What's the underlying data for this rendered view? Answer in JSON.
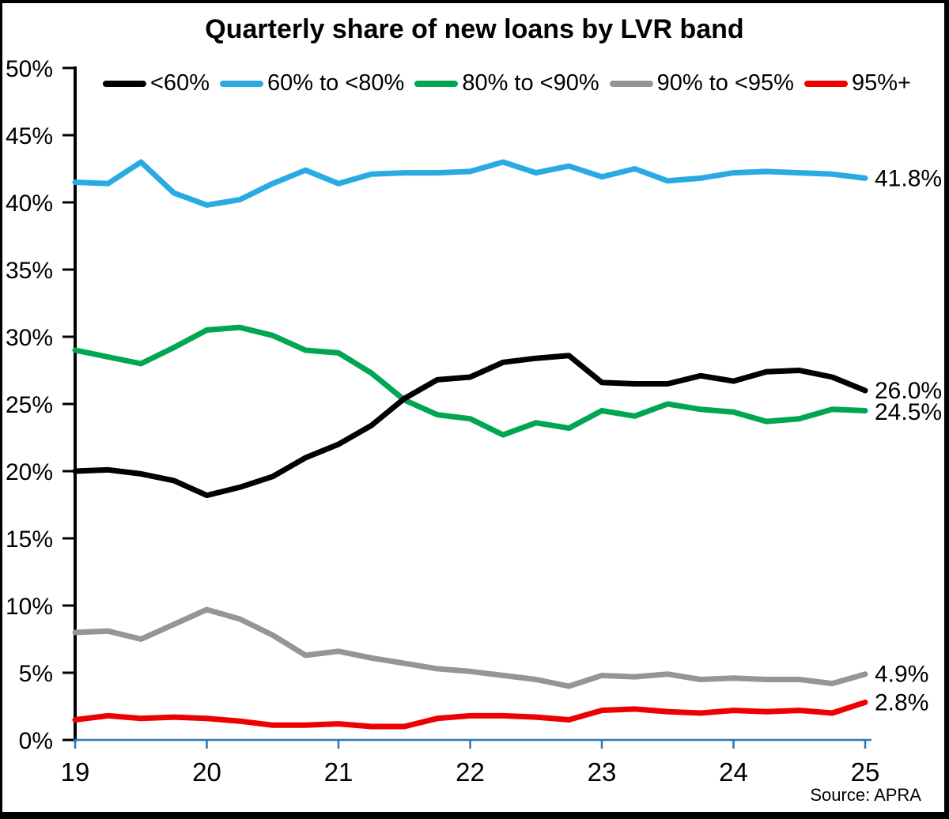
{
  "figure": {
    "title": "Quarterly share of new loans by LVR band",
    "source_note": "Source: APRA"
  },
  "chart_data": {
    "type": "line",
    "title": "Quarterly share of new loans by LVR band",
    "xlabel": "",
    "ylabel": "",
    "xlim": [
      19,
      25
    ],
    "ylim": [
      0,
      50
    ],
    "grid": false,
    "legend_position": "top",
    "axis_color": "#2E75B6",
    "y_axis_color": "#000000",
    "x_tick_labels": [
      "19",
      "20",
      "21",
      "22",
      "23",
      "24",
      "25"
    ],
    "y_tick_labels": [
      "0%",
      "5%",
      "10%",
      "15%",
      "20%",
      "25%",
      "30%",
      "35%",
      "40%",
      "45%",
      "50%"
    ],
    "x": [
      19,
      19.25,
      19.5,
      19.75,
      20,
      20.25,
      20.5,
      20.75,
      21,
      21.25,
      21.5,
      21.75,
      22,
      22.25,
      22.5,
      22.75,
      23,
      23.25,
      23.5,
      23.75,
      24,
      24.25,
      24.5,
      24.75,
      25
    ],
    "series": [
      {
        "name": "<60%",
        "color": "#000000",
        "end_label": "26.0%",
        "values": [
          20.0,
          20.1,
          19.8,
          19.3,
          18.2,
          18.8,
          19.6,
          21.0,
          22.0,
          23.4,
          25.4,
          26.8,
          27.0,
          28.1,
          28.4,
          28.6,
          26.6,
          26.5,
          26.5,
          27.1,
          26.7,
          27.4,
          27.5,
          27.0,
          26.0
        ]
      },
      {
        "name": "60% to <80%",
        "color": "#29ABE2",
        "end_label": "41.8%",
        "values": [
          41.5,
          41.4,
          43.0,
          40.7,
          39.8,
          40.2,
          41.4,
          42.4,
          41.4,
          42.1,
          42.2,
          42.2,
          42.3,
          43.0,
          42.2,
          42.7,
          41.9,
          42.5,
          41.6,
          41.8,
          42.2,
          42.3,
          42.2,
          42.1,
          41.8
        ]
      },
      {
        "name": "80% to <90%",
        "color": "#00A651",
        "end_label": "24.5%",
        "values": [
          29.0,
          28.5,
          28.0,
          29.2,
          30.5,
          30.7,
          30.1,
          29.0,
          28.8,
          27.3,
          25.3,
          24.2,
          23.9,
          22.7,
          23.6,
          23.2,
          24.5,
          24.1,
          25.0,
          24.6,
          24.4,
          23.7,
          23.9,
          24.6,
          24.5
        ]
      },
      {
        "name": "90% to <95%",
        "color": "#959595",
        "end_label": "4.9%",
        "values": [
          8.0,
          8.1,
          7.5,
          8.6,
          9.7,
          9.0,
          7.8,
          6.3,
          6.6,
          6.1,
          5.7,
          5.3,
          5.1,
          4.8,
          4.5,
          4.0,
          4.8,
          4.7,
          4.9,
          4.5,
          4.6,
          4.5,
          4.5,
          4.2,
          4.9
        ]
      },
      {
        "name": "95%+",
        "color": "#EE0000",
        "end_label": "2.8%",
        "values": [
          1.5,
          1.8,
          1.6,
          1.7,
          1.6,
          1.4,
          1.1,
          1.1,
          1.2,
          1.0,
          1.0,
          1.6,
          1.8,
          1.8,
          1.7,
          1.5,
          2.2,
          2.3,
          2.1,
          2.0,
          2.2,
          2.1,
          2.2,
          2.0,
          2.8
        ]
      }
    ]
  }
}
